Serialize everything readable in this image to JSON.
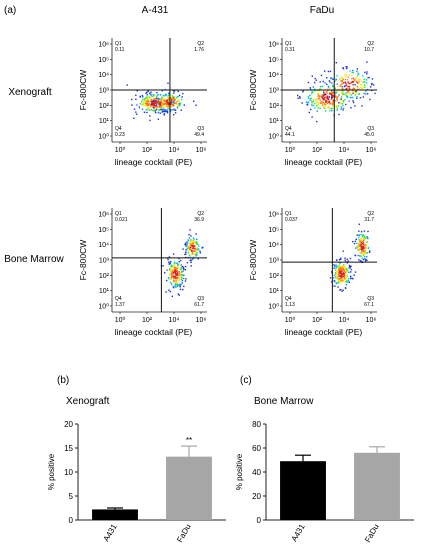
{
  "panel_a": {
    "label": "(a)",
    "col_titles": [
      "A-431",
      "FaDu"
    ],
    "row_titles": [
      "Xenograft",
      "Bone Marrow"
    ],
    "xlabel": "lineage cocktail (PE)",
    "ylabel": "Fc-800CW",
    "tick_labels": [
      "10⁰",
      "10²",
      "10⁴",
      "10⁶"
    ],
    "ytick_labels": [
      "10⁰",
      "10¹",
      "10²",
      "10³",
      "10⁴",
      "10⁵",
      "10⁶"
    ],
    "plots": [
      {
        "quadrants": {
          "Q1": "0.11",
          "Q2": "1.76",
          "Q3": "49.4",
          "Q4": "0.23"
        }
      },
      {
        "quadrants": {
          "Q1": "0.31",
          "Q2": "10.7",
          "Q3": "45.0",
          "Q4": "44.1"
        }
      },
      {
        "quadrants": {
          "Q1": "0.021",
          "Q2": "36.9",
          "Q3": "61.7",
          "Q4": "1.37"
        }
      },
      {
        "quadrants": {
          "Q1": "0.037",
          "Q2": "31.7",
          "Q3": "67.1",
          "Q4": "1.13"
        }
      }
    ]
  },
  "panel_b": {
    "label": "(b)",
    "title": "Xenograft",
    "significance": "**"
  },
  "panel_c": {
    "label": "(c)",
    "title": "Bone Marrow"
  },
  "chart_data": [
    {
      "type": "bar",
      "title": "Xenograft",
      "categories": [
        "A431",
        "FaDu"
      ],
      "values": [
        2.2,
        13.2
      ],
      "errors": [
        0.3,
        2.2
      ],
      "ylabel": "% positive",
      "ylim": [
        0,
        20
      ],
      "yticks": [
        "0",
        "5",
        "10",
        "15",
        "20"
      ],
      "colors": [
        "#000000",
        "#a6a6a6"
      ]
    },
    {
      "type": "bar",
      "title": "Bone Marrow",
      "categories": [
        "A431",
        "FaDu"
      ],
      "values": [
        49,
        56
      ],
      "errors": [
        5,
        5
      ],
      "ylabel": "% positive",
      "ylim": [
        0,
        80
      ],
      "yticks": [
        "0",
        "20",
        "40",
        "60",
        "80"
      ],
      "colors": [
        "#000000",
        "#a6a6a6"
      ]
    }
  ]
}
